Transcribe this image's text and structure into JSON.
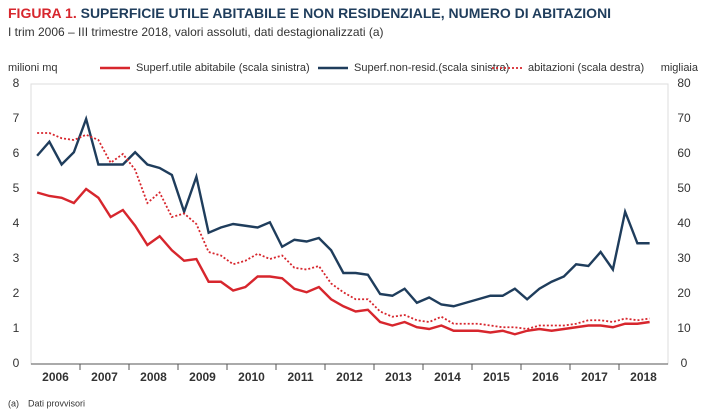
{
  "chart_data": {
    "type": "line",
    "title_prefix": "FIGURA 1.",
    "title": "SUPERFICIE UTILE ABITABILE E NON RESIDENZIALE, NUMERO DI ABITAZIONI",
    "subtitle": "I trim 2006 – III trimestre 2018, valori assoluti, dati destagionalizzati (a)",
    "ylabel": "milioni mq",
    "y2label": "migliaia",
    "years": [
      "2006",
      "2007",
      "2008",
      "2009",
      "2010",
      "2011",
      "2012",
      "2013",
      "2014",
      "2015",
      "2016",
      "2017",
      "2018"
    ],
    "ylim": [
      0,
      8
    ],
    "yticks": [
      0,
      1,
      2,
      3,
      4,
      5,
      6,
      7,
      8
    ],
    "y2lim": [
      0,
      80
    ],
    "y2ticks": [
      0,
      10,
      20,
      30,
      40,
      50,
      60,
      70,
      80
    ],
    "series": [
      {
        "name": "Superf.utile abitabile (scala sinistra)",
        "color": "#d7262d",
        "dash": false,
        "values": [
          4.9,
          4.8,
          4.75,
          4.6,
          5.0,
          4.75,
          4.2,
          4.4,
          3.95,
          3.4,
          3.65,
          3.25,
          2.95,
          3.0,
          2.35,
          2.35,
          2.1,
          2.2,
          2.5,
          2.5,
          2.45,
          2.15,
          2.05,
          2.2,
          1.85,
          1.65,
          1.5,
          1.55,
          1.2,
          1.1,
          1.2,
          1.05,
          1.0,
          1.1,
          0.95,
          0.95,
          0.95,
          0.9,
          0.95,
          0.85,
          0.95,
          1.0,
          0.95,
          1.0,
          1.05,
          1.1,
          1.1,
          1.05,
          1.15,
          1.15,
          1.2
        ]
      },
      {
        "name": "Superf.non-resid.(scala sinistra)",
        "color": "#1f3d5c",
        "dash": false,
        "values": [
          5.95,
          6.35,
          5.7,
          6.05,
          7.0,
          5.7,
          5.7,
          5.7,
          6.05,
          5.7,
          5.6,
          5.4,
          4.35,
          5.35,
          3.75,
          3.9,
          4.0,
          3.95,
          3.9,
          4.05,
          3.35,
          3.55,
          3.5,
          3.6,
          3.25,
          2.6,
          2.6,
          2.55,
          2.0,
          1.95,
          2.15,
          1.75,
          1.9,
          1.7,
          1.65,
          1.75,
          1.85,
          1.95,
          1.95,
          2.15,
          1.85,
          2.15,
          2.35,
          2.5,
          2.85,
          2.8,
          3.2,
          2.7,
          4.35,
          3.45,
          3.45
        ]
      },
      {
        "name": "abitazioni (scala destra)",
        "color": "#d7262d",
        "dash": true,
        "axis": "y2",
        "values": [
          66,
          66,
          64.5,
          64,
          65.5,
          64,
          57.5,
          60,
          55.5,
          46,
          49,
          42,
          43,
          40,
          32,
          31,
          28.5,
          29.5,
          31.5,
          30,
          31,
          27.5,
          27,
          28,
          23,
          20.5,
          18.5,
          18.5,
          15,
          13.5,
          14,
          12.5,
          12,
          13.5,
          11.5,
          11.5,
          11.5,
          11,
          10.5,
          10.5,
          10,
          11,
          11,
          11,
          11.5,
          12.5,
          12.5,
          12,
          13,
          12.5,
          13
        ]
      }
    ],
    "footnote_mark": "(a)",
    "footnote": "Dati provvisori"
  }
}
